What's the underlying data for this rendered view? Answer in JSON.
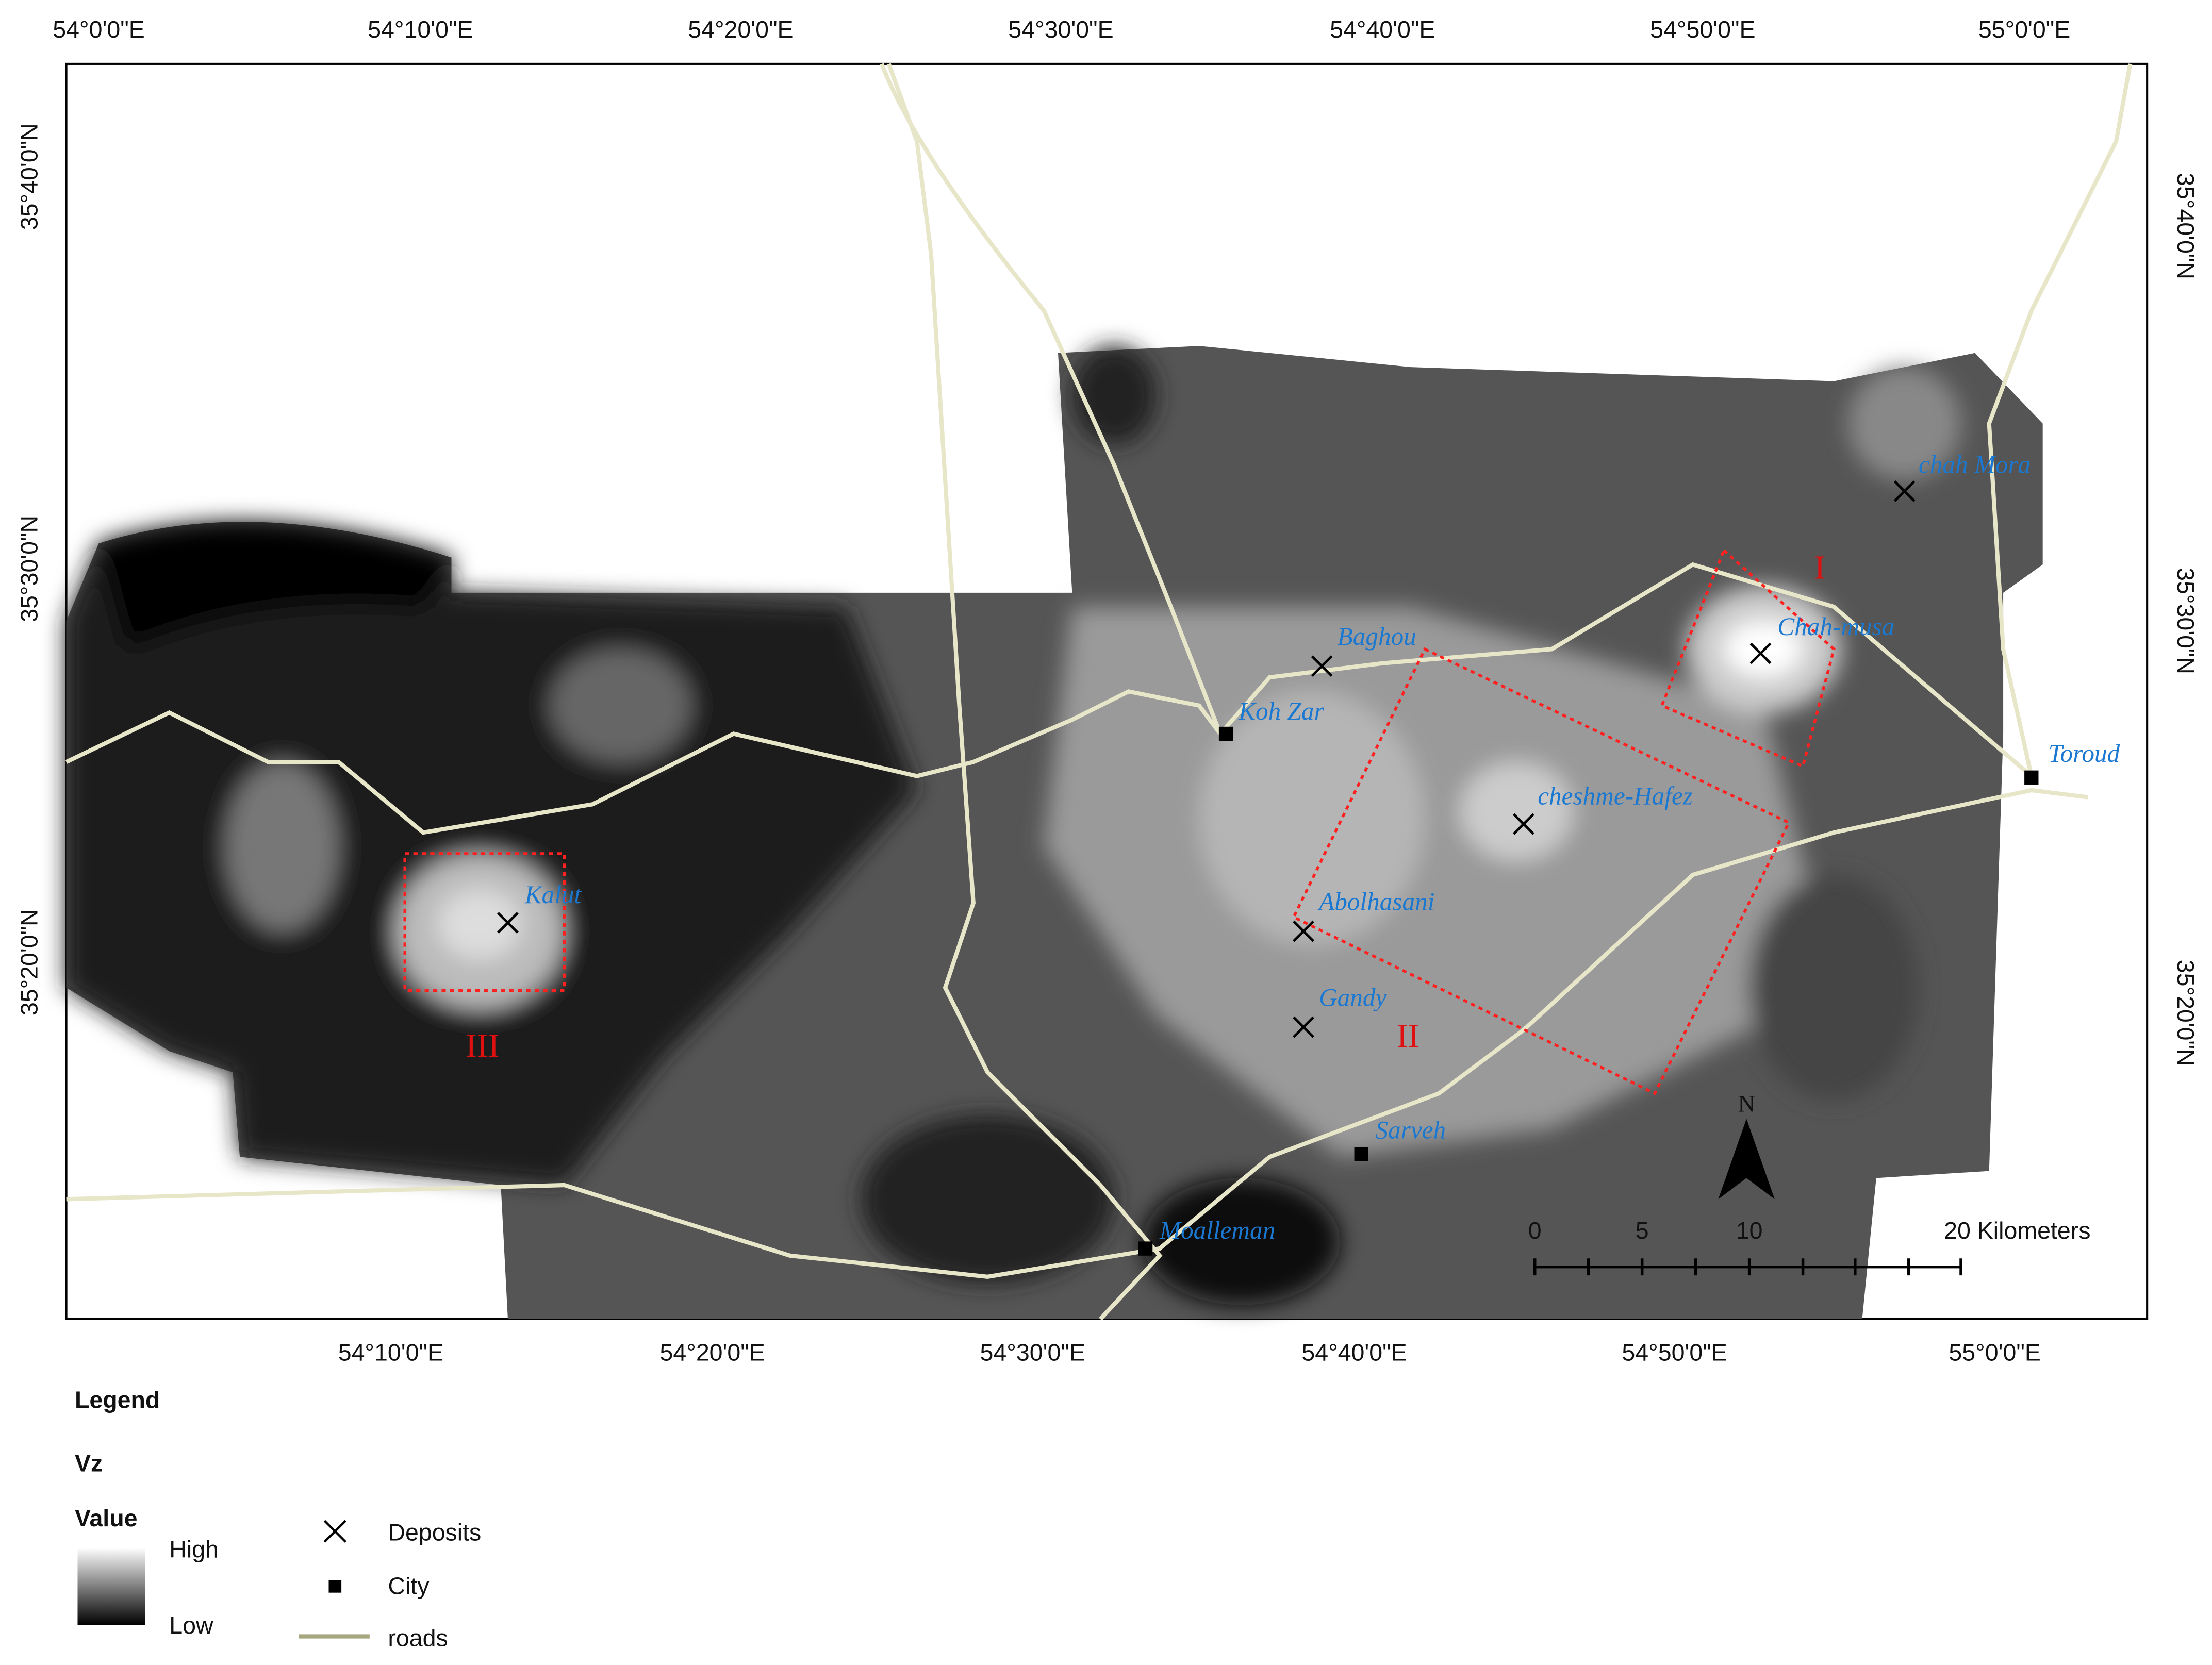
{
  "top_axis_labels": [
    "54°0'0\"E",
    "54°10'0\"E",
    "54°20'0\"E",
    "54°30'0\"E",
    "54°40'0\"E",
    "54°50'0\"E",
    "55°0'0\"E"
  ],
  "bottom_axis_labels": [
    "54°10'0\"E",
    "54°20'0\"E",
    "54°30'0\"E",
    "54°40'0\"E",
    "54°50'0\"E",
    "55°0'0\"E"
  ],
  "left_axis_labels": [
    "35°40'0\"N",
    "35°30'0\"N",
    "35°20'0\"N"
  ],
  "right_axis_labels": [
    "35°40'0\"N",
    "35°30'0\"N",
    "35°20'0\"N"
  ],
  "places": [
    "chah Mora",
    "Chah-musa",
    "Toroud",
    "Baghou",
    "Koh Zar",
    "cheshme-Hafez",
    "Kalut",
    "Abolhasani",
    "Gandy",
    "Sarveh",
    "Moalleman"
  ],
  "zones": [
    "I",
    "II",
    "III"
  ],
  "scale_bar": {
    "ticks": [
      "0",
      "5",
      "10"
    ],
    "end": "20 Kilometers"
  },
  "north": "N",
  "legend": {
    "title": "Legend",
    "layer": "Vz",
    "field": "Value",
    "high": "High",
    "low": "Low",
    "items": [
      "Deposits",
      "City",
      "roads"
    ]
  }
}
